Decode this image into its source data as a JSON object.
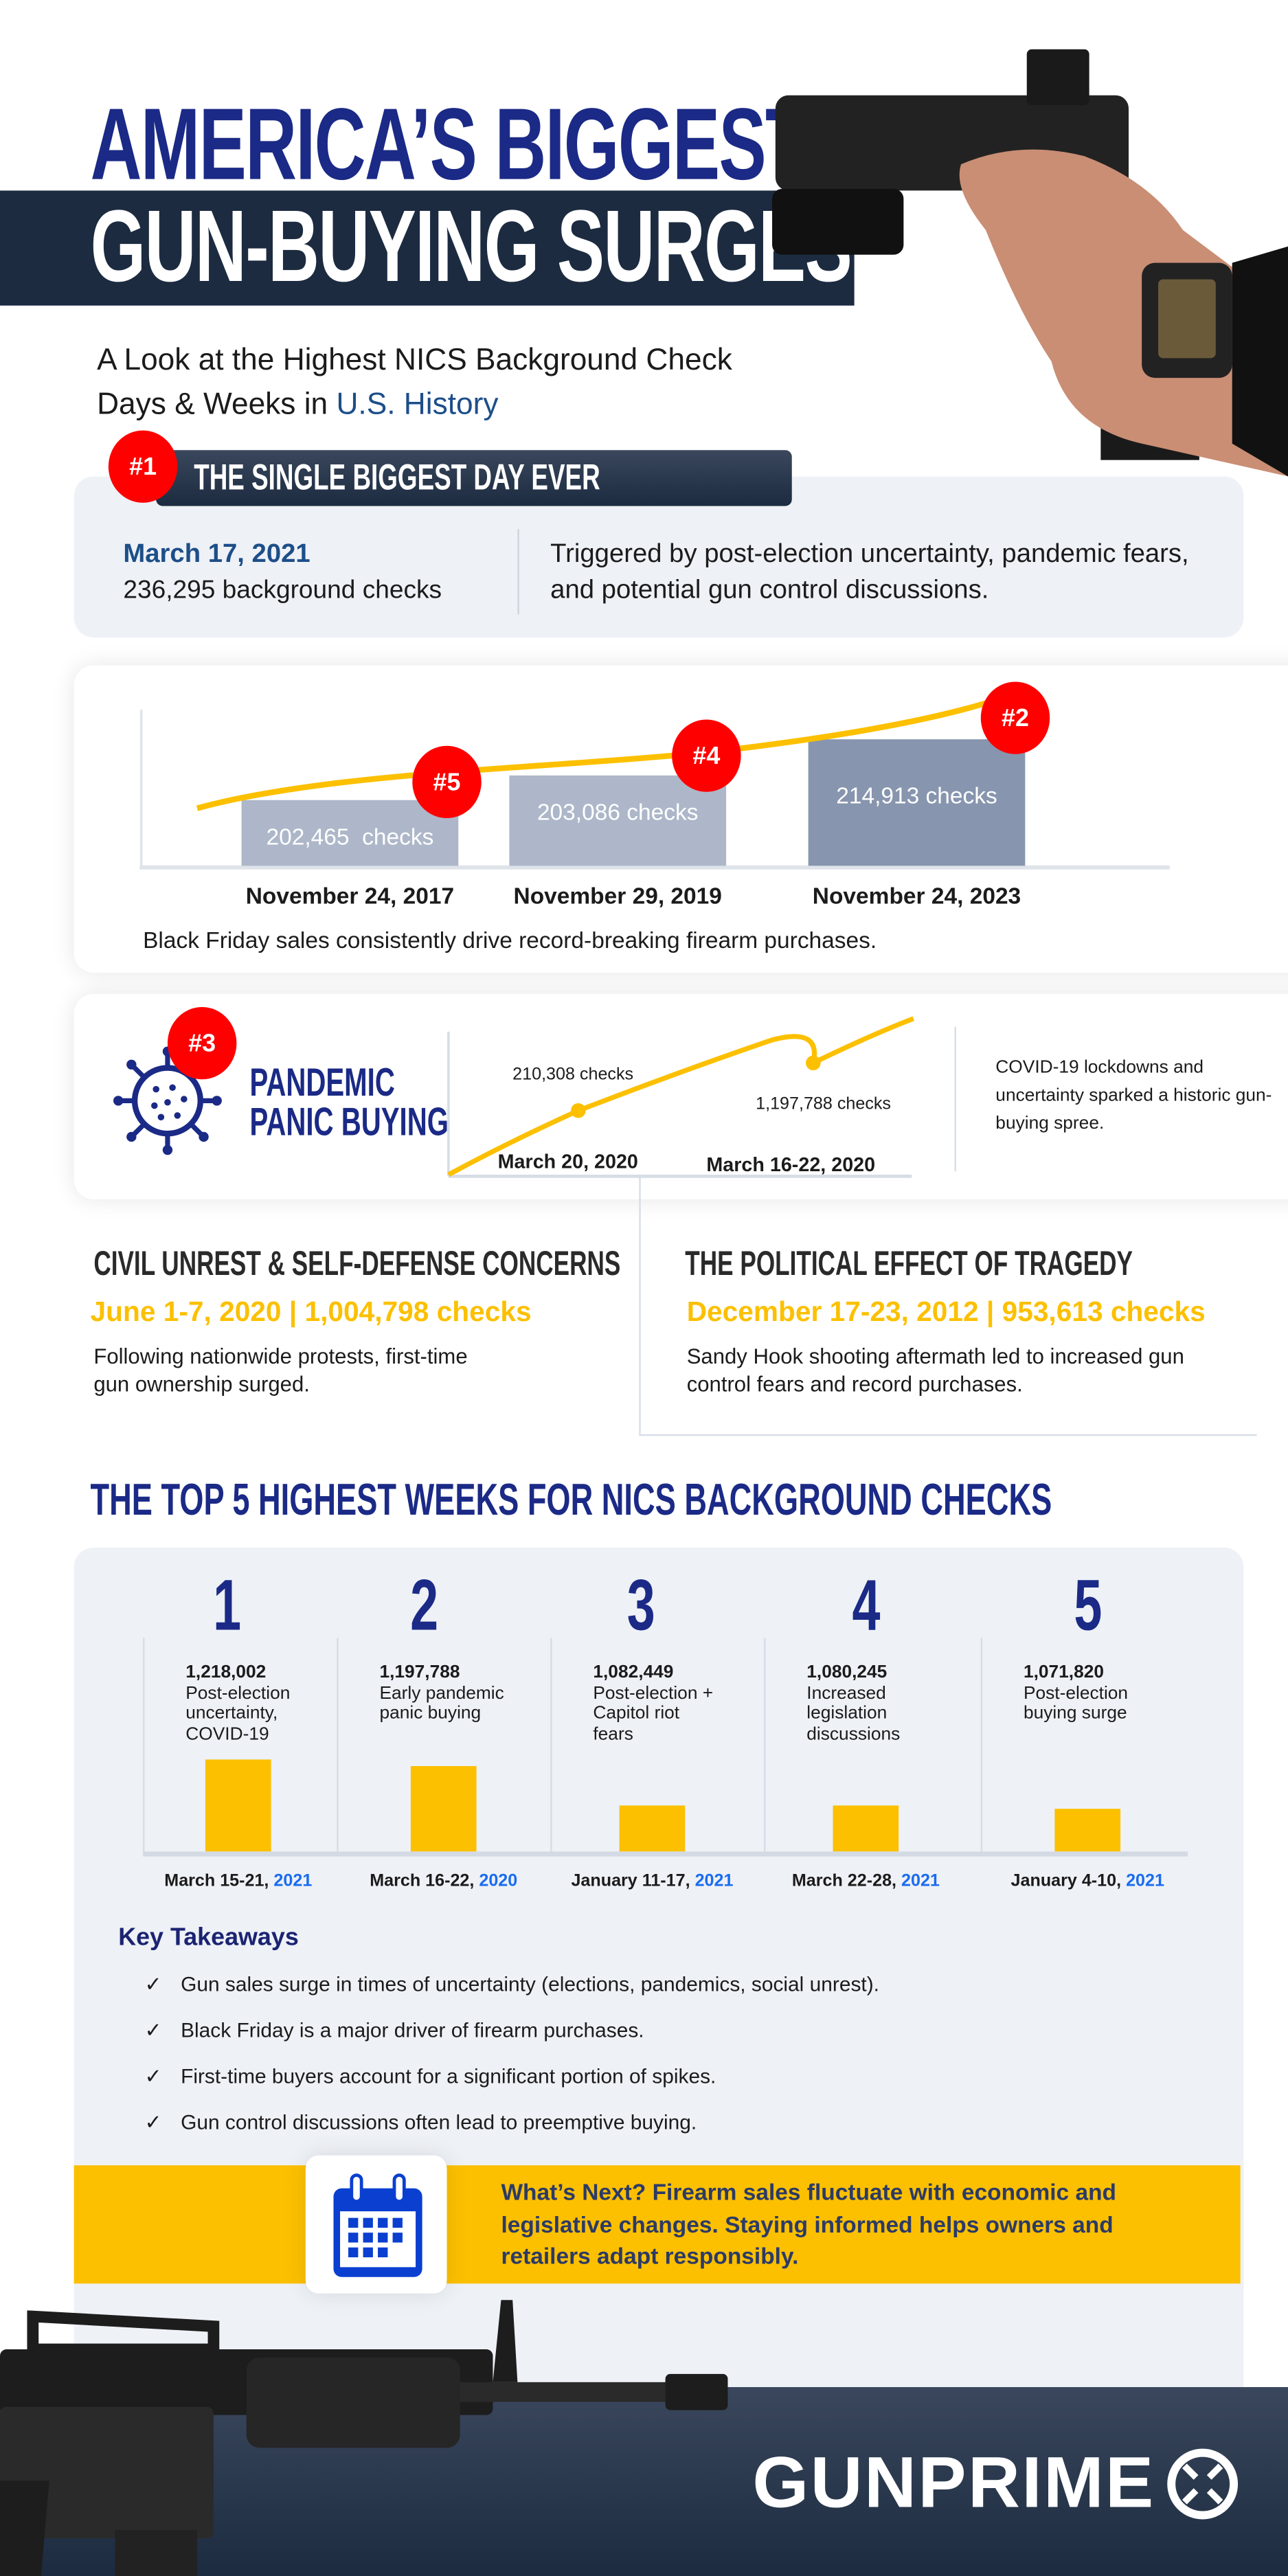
{
  "header": {
    "title_line1": "AMERICA’S BIGGEST",
    "title_line2": "GUN-BUYING SURGES",
    "subtitle_line1": "A Look at the Highest NICS Background Check",
    "subtitle_line2_prefix": "Days & Weeks in ",
    "subtitle_line2_highlight": "U.S. History"
  },
  "biggest_day": {
    "badge": "#1",
    "heading": "THE SINGLE BIGGEST DAY EVER",
    "date": "March 17, 2021",
    "checks": "236,295 background checks",
    "description": "Triggered by post-election uncertainty, pandemic fears, and potential gun control discussions."
  },
  "black_friday": {
    "caption": "Black Friday sales consistently drive record-breaking firearm purchases.",
    "chart_data": {
      "type": "bar",
      "categories": [
        "November 24, 2017",
        "November 29, 2019",
        "November 24, 2023"
      ],
      "values": [
        202465,
        203086,
        214913
      ],
      "value_labels": [
        "202,465  checks",
        "203,086 checks",
        "214,913 checks"
      ],
      "ranks": [
        "#5",
        "#4",
        "#2"
      ]
    }
  },
  "pandemic": {
    "badge": "#3",
    "title_line1": "PANDEMIC",
    "title_line2": "PANIC BUYING",
    "description": "COVID-19 lockdowns and uncertainty sparked a historic gun-buying spree.",
    "chart_data": {
      "type": "line",
      "categories": [
        "March 20, 2020",
        "March 16-22, 2020"
      ],
      "point_labels": [
        "210,308 checks",
        "1,197,788 checks"
      ]
    }
  },
  "civil_unrest": {
    "heading": "CIVIL UNREST & SELF-DEFENSE CONCERNS",
    "stat": "June 1-7, 2020 | 1,004,798 checks",
    "description": "Following nationwide protests, first-time gun ownership surged."
  },
  "tragedy": {
    "heading": "THE POLITICAL EFFECT OF TRAGEDY",
    "stat": "December 17-23, 2012 | 953,613 checks",
    "description": "Sandy Hook shooting aftermath led to increased gun control fears and record purchases."
  },
  "top5": {
    "heading": "THE TOP 5 HIGHEST WEEKS FOR NICS BACKGROUND CHECKS",
    "chart_data": {
      "type": "bar",
      "ranks": [
        "1",
        "2",
        "3",
        "4",
        "5"
      ],
      "values": [
        1218002,
        1197788,
        1082449,
        1080245,
        1071820
      ],
      "value_labels": [
        "1,218,002",
        "1,197,788",
        "1,082,449",
        "1,080,245",
        "1,071,820"
      ],
      "descriptions": [
        "Post-election uncertainty, COVID-19",
        "Early pandemic panic buying",
        "Post-election + Capitol riot fears",
        "Increased legislation discussions",
        "Post-election buying surge"
      ],
      "date_prefixes": [
        "March 15-21, ",
        "March 16-22, ",
        "January 11-17, ",
        "March 22-28, ",
        "January 4-10, "
      ],
      "years": [
        "2021",
        "2020",
        "2021",
        "2021",
        "2021"
      ],
      "bar_color": "#fcc000"
    }
  },
  "takeaways": {
    "heading": "Key Takeaways",
    "check_icon": "checkmark-icon",
    "items": [
      "Gun sales surge in times of uncertainty (elections, pandemics, social unrest).",
      "Black Friday is a major driver of firearm purchases.",
      "First-time buyers account for a significant portion of spikes.",
      "Gun control discussions often lead to preemptive buying."
    ]
  },
  "whats_next": {
    "icon": "calendar-icon",
    "text": "What’s Next? Firearm sales fluctuate with economic and legislative changes. Staying informed helps owners and retailers adapt responsibly."
  },
  "footer": {
    "logo": "GUNPRIME"
  },
  "colors": {
    "navy": "#1b2a86",
    "dark_band": "#1c2b40",
    "red": "#ff0000",
    "yellow": "#fcc000",
    "blue_accent": "#1d4e89",
    "panel": "#eef1f6"
  }
}
